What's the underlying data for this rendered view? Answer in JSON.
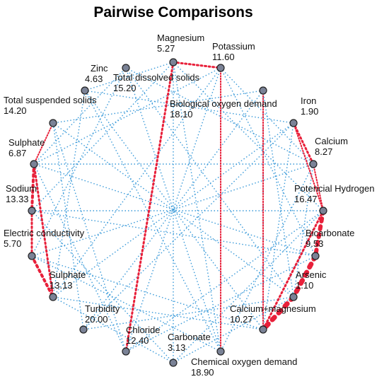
{
  "title": "Pairwise Comparisons",
  "nodes": [
    {
      "label": "Magnesium",
      "value": "5.27"
    },
    {
      "label": "Potassium",
      "value": "11.60"
    },
    {
      "label": "Zinc",
      "value": "4.63"
    },
    {
      "label": "Total dissolved solids",
      "value": "15.20"
    },
    {
      "label": "Total suspended solids",
      "value": "14.20"
    },
    {
      "label": "Biological oxygen demand",
      "value": "18.10"
    },
    {
      "label": "Iron",
      "value": "1.90"
    },
    {
      "label": "Calcium",
      "value": "8.27"
    },
    {
      "label": "Sulphate",
      "value": "6.87"
    },
    {
      "label": "Sodium",
      "value": "13.33"
    },
    {
      "label": "Potencial Hydrogen",
      "value": "16.47"
    },
    {
      "label": "Bicarbonate",
      "value": "9.53"
    },
    {
      "label": "Electric conductivity",
      "value": "5.70"
    },
    {
      "label": "Arsenic",
      "value": "1.10"
    },
    {
      "label": "Sulphate",
      "value": "13.13"
    },
    {
      "label": "Turbidity",
      "value": "20.00"
    },
    {
      "label": "Calcium+magnesium",
      "value": "10.27"
    },
    {
      "label": "Chloride",
      "value": "12.40"
    },
    {
      "label": "Carbonate",
      "value": "3.13"
    },
    {
      "label": "Chemical oxygen demand",
      "value": "18.90"
    }
  ]
}
